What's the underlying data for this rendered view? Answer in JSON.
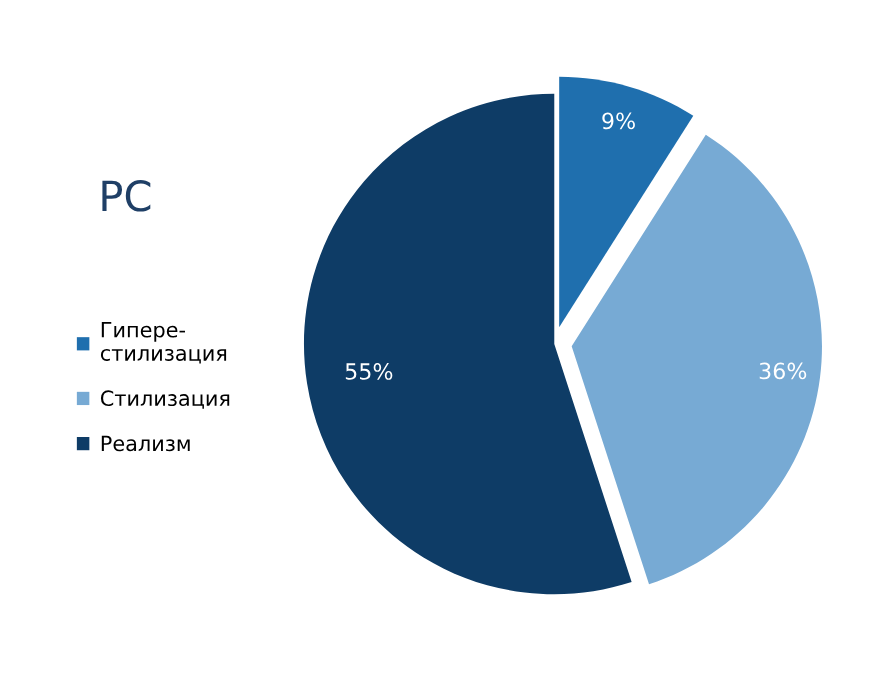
{
  "chart_data": {
    "type": "pie",
    "title": "PC",
    "categories": [
      "Гипере-\nстилизация",
      "Стилизация",
      "Реализм"
    ],
    "values": [
      9,
      36,
      55
    ],
    "colors": [
      "#1f6fae",
      "#77aad4",
      "#0e3c66"
    ],
    "value_labels": [
      "9%",
      "36%",
      "55%"
    ],
    "legend": "left"
  }
}
